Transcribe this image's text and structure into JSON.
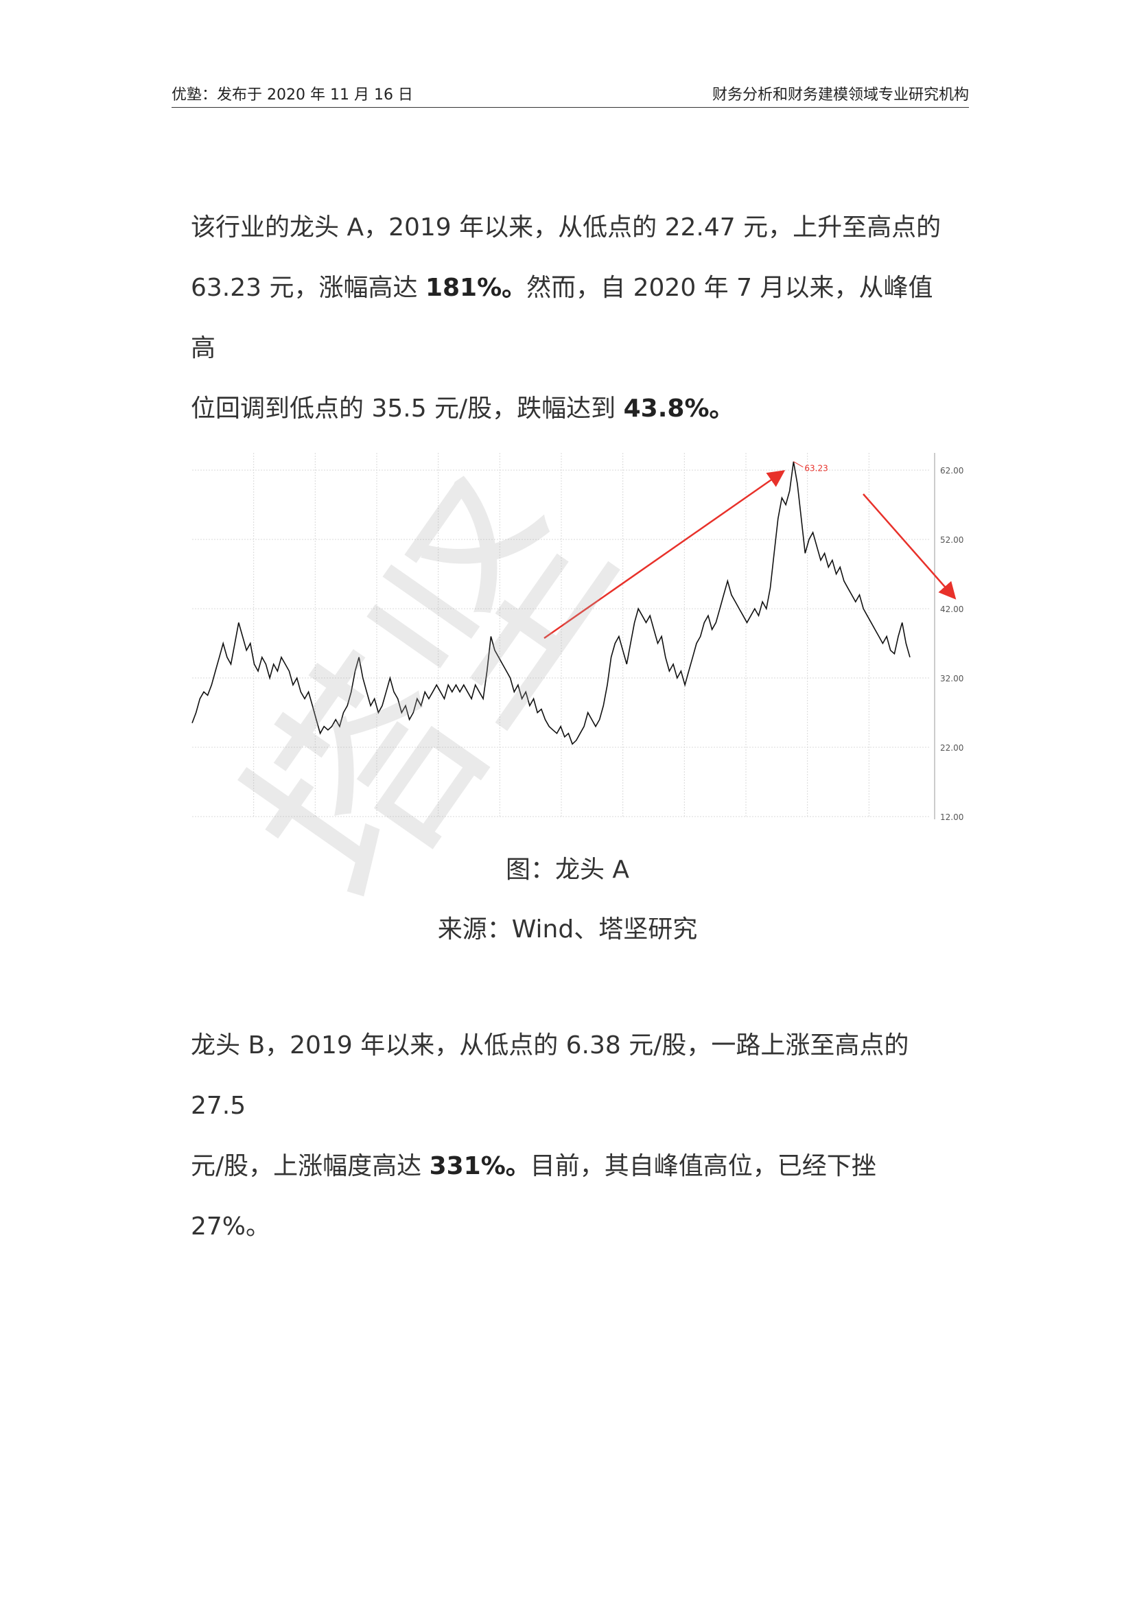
{
  "header": {
    "left": "优塾：发布于 2020 年 11 月 16 日",
    "right": "财务分析和财务建模领域专业研究机构"
  },
  "para1": {
    "line1": "该行业的龙头 A，2019 年以来，从低点的 22.47 元，上升至高点的",
    "line2a": "63.23 元，涨幅高达 ",
    "line2b": "181%。",
    "line2c": "然而，自 2020 年 7 月以来，从峰值高",
    "line3a": "位回调到低点的 35.5 元/股，跌幅达到 ",
    "line3b": "43.8%。"
  },
  "caption": {
    "title": "图：龙头 A",
    "source": "来源：Wind、塔坚研究"
  },
  "para2": {
    "line1": "龙头 B，2019 年以来，从低点的 6.38 元/股，一路上涨至高点的 27.5",
    "line2a": "元/股，上涨幅度高达 ",
    "line2b": "331%。",
    "line2c": "目前，其自峰值高位，已经下挫 27%。"
  },
  "watermark": "塔坚",
  "chart_data": {
    "type": "line",
    "ylim": [
      12,
      63.5
    ],
    "yticks": [
      "62.00",
      "52.00",
      "42.00",
      "32.00",
      "22.00",
      "12.00"
    ],
    "peak_label": "63.23",
    "colors": {
      "line": "#111111",
      "arrow": "#e8312a",
      "grid": "#d9d9d9"
    },
    "series": [
      {
        "values": [
          25.5,
          27,
          29,
          30,
          29.5,
          31,
          33,
          35,
          37,
          35,
          34,
          37,
          40,
          38,
          36,
          37,
          34,
          33,
          35,
          34,
          32,
          34,
          33,
          35,
          34,
          33,
          31,
          32,
          30,
          29,
          30,
          28,
          26,
          24,
          25,
          24.5,
          25,
          26,
          25,
          27,
          28,
          30,
          33,
          35,
          32,
          30,
          28,
          29,
          27,
          28,
          30,
          32,
          30,
          29,
          27,
          28,
          26,
          27,
          29,
          28,
          30,
          29,
          30,
          31,
          30,
          29,
          31,
          30,
          31,
          30,
          31,
          30,
          29,
          31,
          30,
          29,
          33,
          38,
          36,
          35,
          34,
          33,
          32,
          30,
          31,
          29,
          30,
          28,
          29,
          27,
          27.5,
          26,
          25,
          24.5,
          24,
          25,
          23.5,
          24,
          22.47,
          23,
          24,
          25,
          27,
          26,
          25,
          26,
          28,
          31,
          35,
          37,
          38,
          36,
          34,
          37,
          40,
          42,
          41,
          40,
          41,
          39,
          37,
          38,
          35,
          33,
          34,
          32,
          33,
          31,
          33,
          35,
          37,
          38,
          40,
          41,
          39,
          40,
          42,
          44,
          46,
          44,
          43,
          42,
          41,
          40,
          41,
          42,
          41,
          43,
          42,
          45,
          50,
          55,
          58,
          57,
          59,
          63.23,
          60,
          55,
          50,
          52,
          53,
          51,
          49,
          50,
          48,
          49,
          47,
          48,
          46,
          45,
          44,
          43,
          44,
          42,
          41,
          40,
          39,
          38,
          37,
          38,
          36,
          35.5,
          38,
          40,
          37,
          35
        ]
      }
    ]
  }
}
